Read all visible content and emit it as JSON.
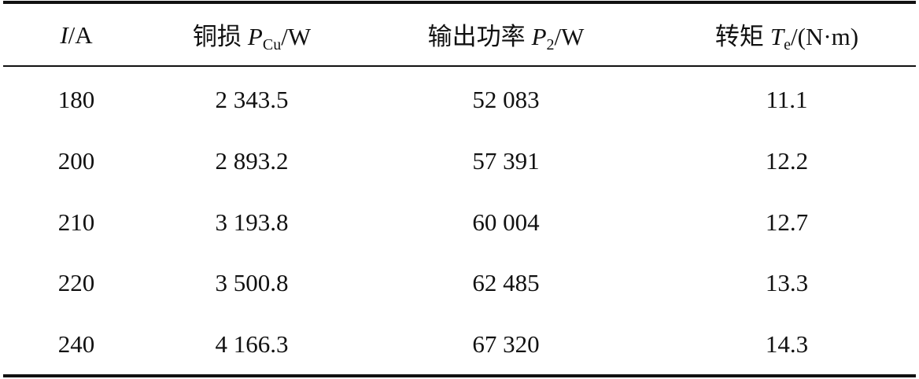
{
  "table": {
    "header": [
      {
        "symbol": "I",
        "unit": "/A"
      },
      {
        "name": "铜损",
        "symbol": "P",
        "sub": "Cu",
        "unit": "/W"
      },
      {
        "name": "输出功率",
        "symbol": "P",
        "sub": "2",
        "unit": "/W"
      },
      {
        "name": "转矩",
        "symbol": "T",
        "sub": "e",
        "unit": "/(N·m)"
      }
    ],
    "rows": [
      [
        "180",
        "2 343.5",
        "52 083",
        "11.1"
      ],
      [
        "200",
        "2 893.2",
        "57 391",
        "12.2"
      ],
      [
        "210",
        "3 193.8",
        "60 004",
        "12.7"
      ],
      [
        "220",
        "3 500.8",
        "62 485",
        "13.3"
      ],
      [
        "240",
        "4 166.3",
        "67 320",
        "14.3"
      ]
    ]
  }
}
